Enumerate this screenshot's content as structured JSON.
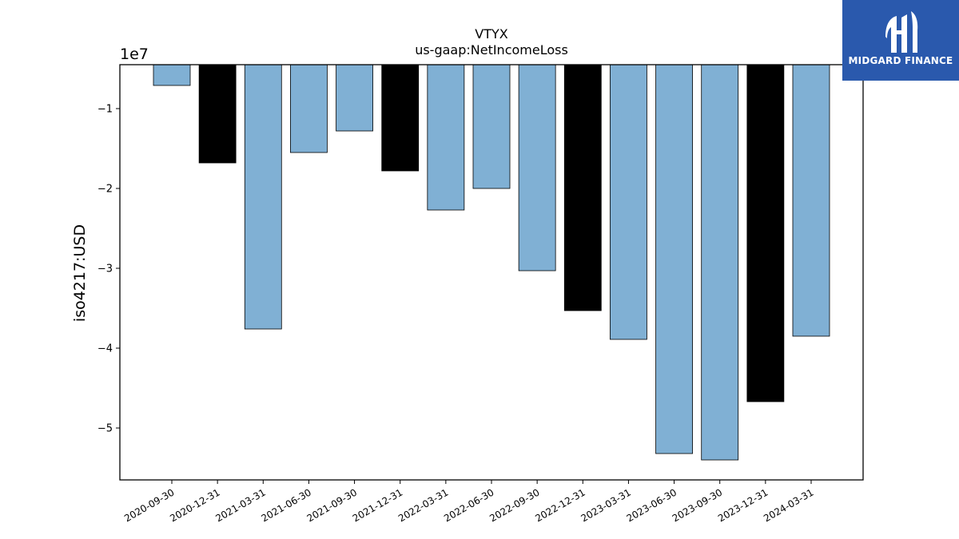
{
  "logo": {
    "text": "MIDGARD FINANCE",
    "icon": "midgard-logo-icon",
    "color": "#2a59ad"
  },
  "chart_data": {
    "type": "bar",
    "title": "VTYX",
    "subtitle": "us-gaap:NetIncomeLoss",
    "ylabel": "iso4217:USD",
    "xlabel": "",
    "offset_label": "1e7",
    "ylim": [
      -56500000,
      -4500000
    ],
    "yticks": [
      -10000000,
      -20000000,
      -30000000,
      -40000000,
      -50000000
    ],
    "ytick_labels": [
      "−1",
      "−2",
      "−3",
      "−4",
      "−5"
    ],
    "grid": false,
    "categories": [
      "2020-09-30",
      "2020-12-31",
      "2021-03-31",
      "2021-06-30",
      "2021-09-30",
      "2021-12-31",
      "2022-03-31",
      "2022-06-30",
      "2022-09-30",
      "2022-12-31",
      "2023-03-31",
      "2023-06-30",
      "2023-09-30",
      "2023-12-31",
      "2024-03-31"
    ],
    "values": [
      -7100000,
      -16800000,
      -37600000,
      -15500000,
      -12800000,
      -17800000,
      -22700000,
      -20000000,
      -30300000,
      -35300000,
      -38900000,
      -53200000,
      -54000000,
      -46700000,
      -38500000
    ],
    "bar_colors": [
      "#80b0d4",
      "#000000",
      "#80b0d4",
      "#80b0d4",
      "#80b0d4",
      "#000000",
      "#80b0d4",
      "#80b0d4",
      "#80b0d4",
      "#000000",
      "#80b0d4",
      "#80b0d4",
      "#80b0d4",
      "#000000",
      "#80b0d4"
    ]
  }
}
